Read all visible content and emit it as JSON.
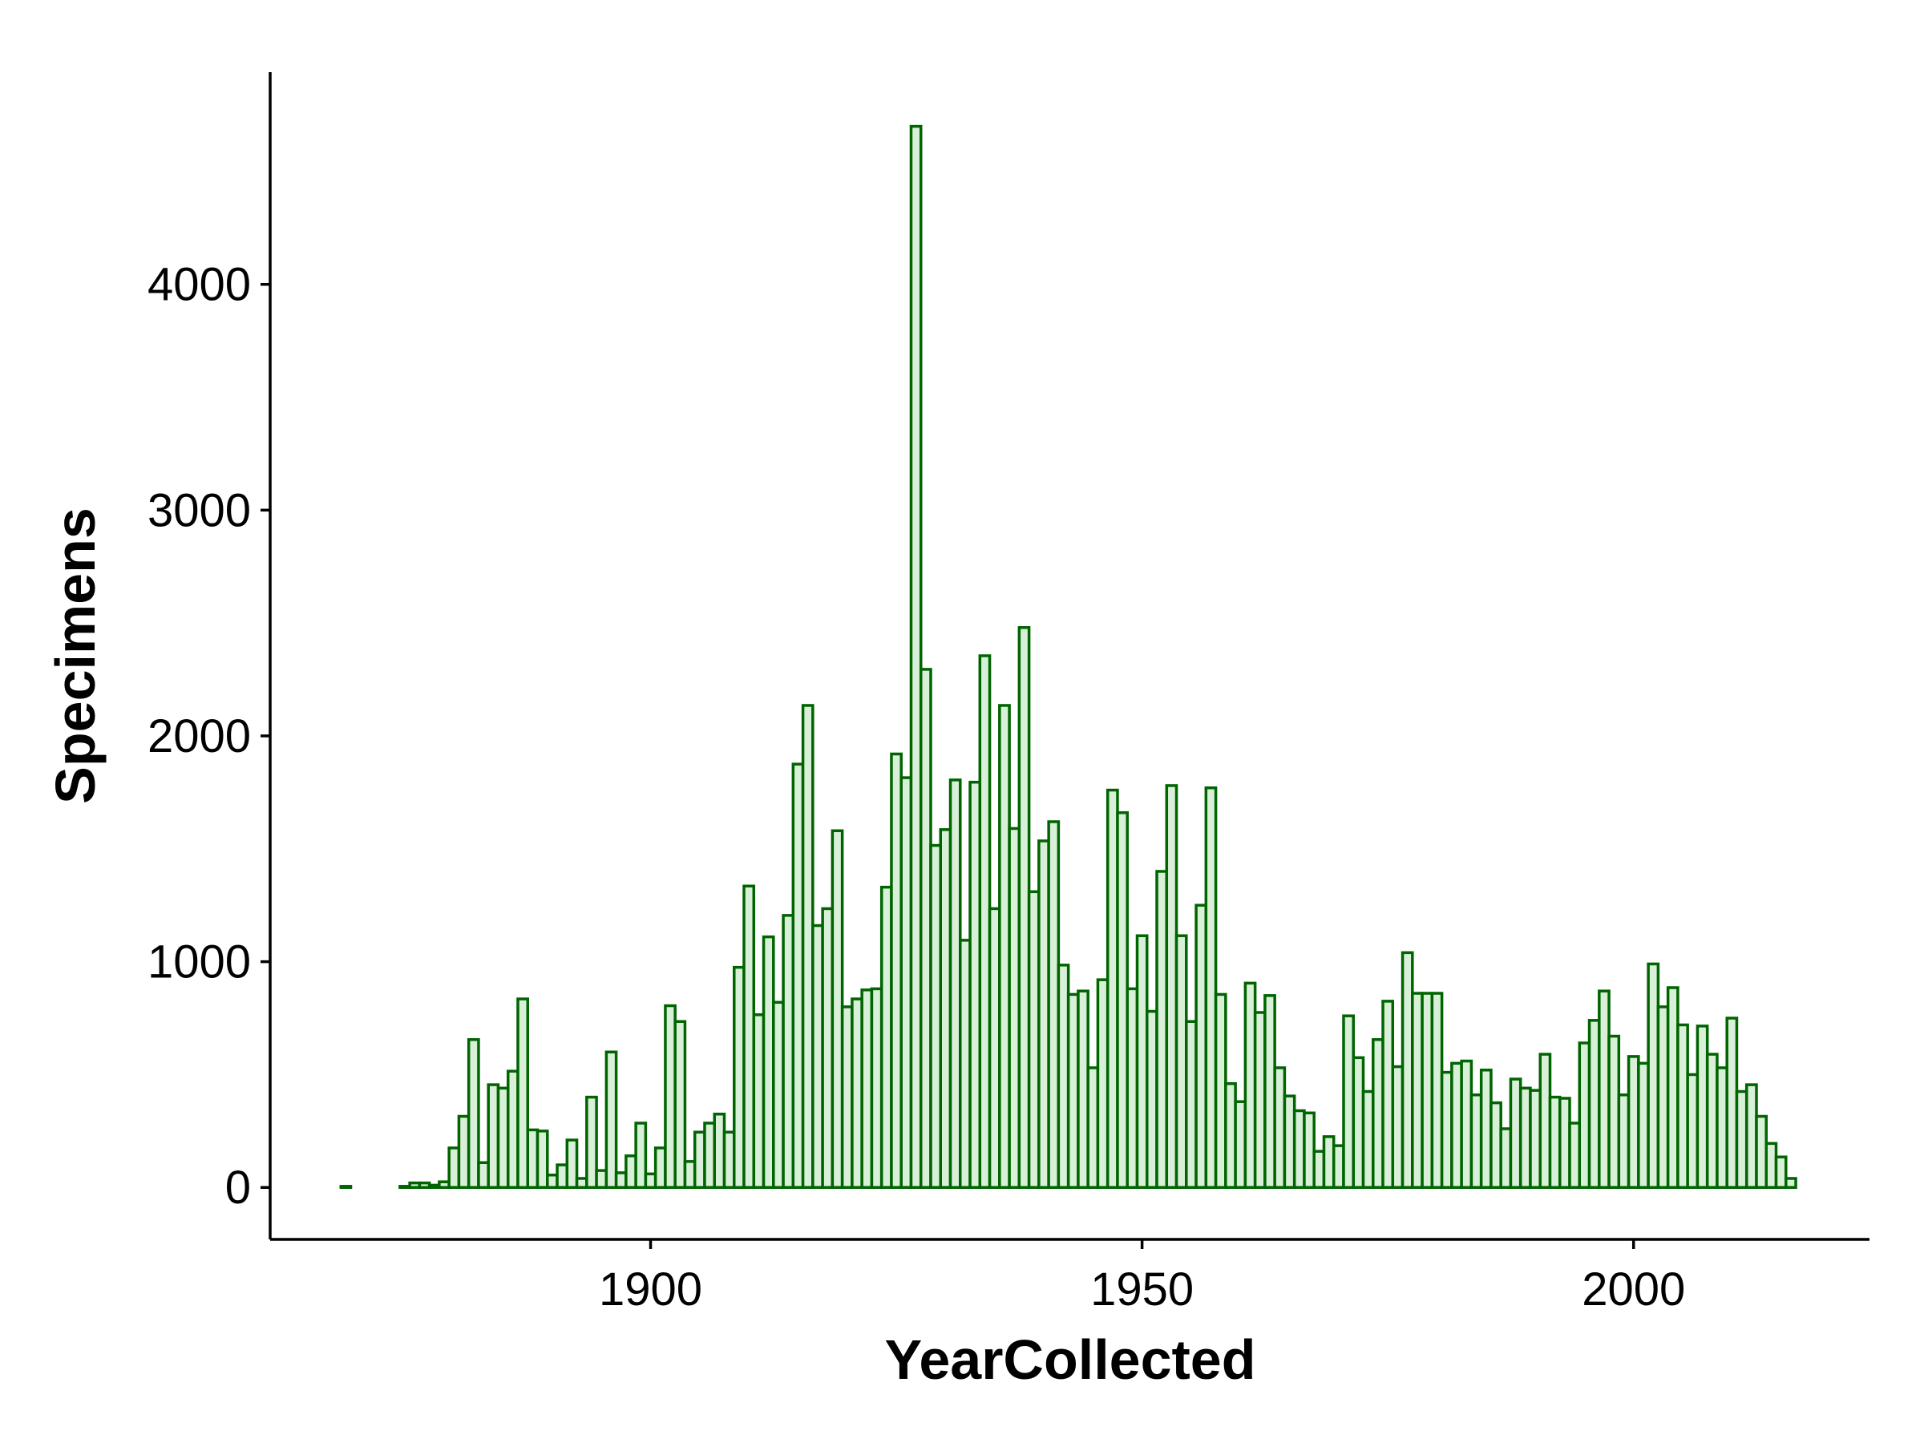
{
  "chart_data": {
    "type": "histogram",
    "x_label": "YearCollected",
    "y_label": "Specimens",
    "bins": [
      1868.5,
      1869.5,
      1870.5,
      1871.5,
      1872.5,
      1873.5,
      1874.5,
      1875.5,
      1876.5,
      1877.5,
      1878.5,
      1879.5,
      1880.5,
      1881.5,
      1882.5,
      1883.5,
      1884.5,
      1885.5,
      1886.5,
      1887.5,
      1888.5,
      1889.5,
      1890.5,
      1891.5,
      1892.5,
      1893.5,
      1894.5,
      1895.5,
      1896.5,
      1897.5,
      1898.5,
      1899.5,
      1900.5,
      1901.5,
      1902.5,
      1903.5,
      1904.5,
      1905.5,
      1906.5,
      1907.5,
      1908.5,
      1909.5,
      1910.5,
      1911.5,
      1912.5,
      1913.5,
      1914.5,
      1915.5,
      1916.5,
      1917.5,
      1918.5,
      1919.5,
      1920.5,
      1921.5,
      1922.5,
      1923.5,
      1924.5,
      1925.5,
      1926.5,
      1927.5,
      1928.5,
      1929.5,
      1930.5,
      1931.5,
      1932.5,
      1933.5,
      1934.5,
      1935.5,
      1936.5,
      1937.5,
      1938.5,
      1939.5,
      1940.5,
      1941.5,
      1942.5,
      1943.5,
      1944.5,
      1945.5,
      1946.5,
      1947.5,
      1948.5,
      1949.5,
      1950.5,
      1951.5,
      1952.5,
      1953.5,
      1954.5,
      1955.5,
      1956.5,
      1957.5,
      1958.5,
      1959.5,
      1960.5,
      1961.5,
      1962.5,
      1963.5,
      1964.5,
      1965.5,
      1966.5,
      1967.5,
      1968.5,
      1969.5,
      1970.5,
      1971.5,
      1972.5,
      1973.5,
      1974.5,
      1975.5,
      1976.5,
      1977.5,
      1978.5,
      1979.5,
      1980.5,
      1981.5,
      1982.5,
      1983.5,
      1984.5,
      1985.5,
      1986.5,
      1987.5,
      1988.5,
      1989.5,
      1990.5,
      1991.5,
      1992.5,
      1993.5,
      1994.5,
      1995.5,
      1996.5,
      1997.5,
      1998.5,
      1999.5,
      2000.5,
      2001.5,
      2002.5,
      2003.5,
      2004.5,
      2005.5,
      2006.5,
      2007.5,
      2008.5,
      2009.5,
      2010.5,
      2011.5,
      2012.5,
      2013.5,
      2014.5,
      2015.5,
      2016.5
    ],
    "values": [
      5,
      0,
      0,
      0,
      0,
      0,
      5,
      20,
      20,
      10,
      25,
      175,
      315,
      655,
      110,
      455,
      440,
      515,
      835,
      255,
      250,
      55,
      100,
      210,
      40,
      400,
      75,
      600,
      65,
      140,
      285,
      60,
      175,
      805,
      735,
      115,
      245,
      285,
      325,
      245,
      975,
      1335,
      765,
      1110,
      820,
      1205,
      1875,
      2135,
      1160,
      1235,
      1580,
      800,
      835,
      875,
      880,
      1330,
      1920,
      1815,
      4700,
      2295,
      1515,
      1585,
      1805,
      1095,
      1795,
      2355,
      1235,
      2135,
      1590,
      2480,
      1310,
      1535,
      1620,
      985,
      855,
      870,
      530,
      920,
      1760,
      1660,
      880,
      1115,
      780,
      1400,
      1780,
      1115,
      735,
      1250,
      1770,
      855,
      460,
      380,
      905,
      775,
      850,
      530,
      405,
      340,
      330,
      160,
      225,
      185,
      760,
      575,
      425,
      655,
      825,
      535,
      1040,
      860,
      860,
      860,
      510,
      550,
      560,
      410,
      520,
      375,
      260,
      480,
      440,
      430,
      590,
      400,
      395,
      285,
      640,
      740,
      870,
      670,
      410,
      580,
      550,
      990,
      800,
      885,
      720,
      500,
      715,
      590,
      530,
      750,
      425,
      455,
      315,
      195,
      135,
      40
    ],
    "color": "#d8efd8",
    "edge_color": "#006400",
    "xlim": [
      1861.3,
      2024
    ],
    "xticks": [
      1900,
      1950,
      2000
    ],
    "ylim": [
      -230,
      4940
    ],
    "yticks": [
      0,
      1000,
      2000,
      3000,
      4000
    ],
    "grid": false
  }
}
